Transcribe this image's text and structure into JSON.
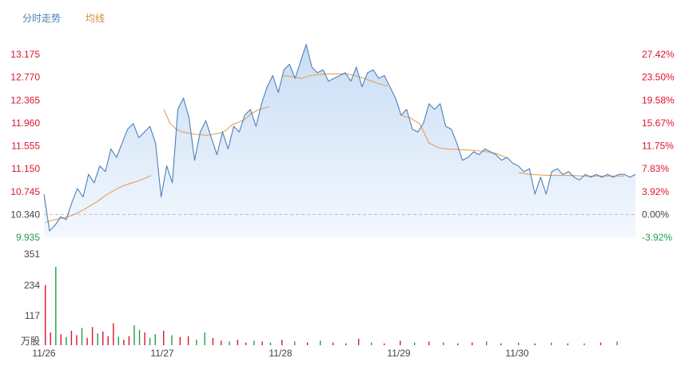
{
  "legend": {
    "price_label": "分时走势",
    "avg_label": "均线"
  },
  "colors": {
    "price": "#4f80b7",
    "avg": "#e3a05e",
    "up": "#e0142e",
    "down": "#1ea04a",
    "grid": "#b9bec6",
    "area_top": "#c9ddf5",
    "area_bottom": "#f3f8fe",
    "legend_price": "#4f80b7",
    "legend_avg": "#d18b3c"
  },
  "chart_data": {
    "type": "line",
    "title": "",
    "x_labels": [
      "11/26",
      "11/27",
      "11/28",
      "11/29",
      "11/30"
    ],
    "y_axis_left": [
      "13.175",
      "12.770",
      "12.365",
      "11.960",
      "11.555",
      "11.150",
      "10.745",
      "10.340",
      "9.935"
    ],
    "y_axis_right": [
      "27.42%",
      "23.50%",
      "19.58%",
      "15.67%",
      "11.75%",
      "7.83%",
      "3.92%",
      "0.00%",
      "-3.92%"
    ],
    "ylim": [
      9.935,
      13.175
    ],
    "baseline": 10.34,
    "volume_axis": [
      "351",
      "234",
      "117"
    ],
    "volume_unit": "万股",
    "volume_max": 351,
    "price_series": {
      "name": "分时走势",
      "values": [
        10.7,
        10.05,
        10.15,
        10.3,
        10.25,
        10.55,
        10.8,
        10.65,
        11.05,
        10.9,
        11.2,
        11.1,
        11.5,
        11.35,
        11.6,
        11.85,
        11.95,
        11.7,
        11.8,
        11.9,
        11.6,
        10.65,
        11.2,
        10.9,
        12.2,
        12.4,
        12.05,
        11.3,
        11.8,
        12.0,
        11.7,
        11.4,
        11.8,
        11.5,
        11.9,
        11.8,
        12.1,
        12.2,
        11.9,
        12.3,
        12.6,
        12.8,
        12.5,
        12.9,
        13.0,
        12.75,
        13.05,
        13.35,
        12.95,
        12.85,
        12.9,
        12.7,
        12.75,
        12.8,
        12.85,
        12.7,
        12.95,
        12.6,
        12.85,
        12.9,
        12.75,
        12.8,
        12.6,
        12.4,
        12.1,
        12.2,
        11.85,
        11.8,
        11.95,
        12.3,
        12.2,
        12.3,
        11.9,
        11.85,
        11.6,
        11.3,
        11.35,
        11.45,
        11.4,
        11.5,
        11.45,
        11.4,
        11.3,
        11.35,
        11.25,
        11.2,
        11.1,
        11.15,
        10.7,
        11.0,
        10.7,
        11.1,
        11.15,
        11.05,
        11.1,
        11.0,
        10.95,
        11.05,
        11.0,
        11.05,
        11.0,
        11.05,
        11.0,
        11.05,
        11.05,
        11.0,
        11.05
      ]
    },
    "avg_series": {
      "name": "均线",
      "segments": [
        {
          "day": 0,
          "values": [
            10.2,
            10.24,
            10.27,
            10.3,
            10.35,
            10.42,
            10.5,
            10.58,
            10.68,
            10.76,
            10.83,
            10.88,
            10.92,
            10.97,
            11.03
          ]
        },
        {
          "day": 1,
          "values": [
            12.2,
            11.95,
            11.85,
            11.8,
            11.78,
            11.76,
            11.75,
            11.74,
            11.76,
            11.78,
            11.83,
            11.93,
            11.97,
            12.02,
            12.12,
            12.18,
            12.22,
            12.25
          ]
        },
        {
          "day": 2,
          "values": [
            12.8,
            12.78,
            12.75,
            12.8,
            12.82,
            12.83,
            12.83,
            12.82,
            12.78,
            12.72,
            12.66,
            12.61
          ]
        },
        {
          "day": 3,
          "values": [
            12.1,
            12.05,
            11.95,
            11.6,
            11.52,
            11.5,
            11.49,
            11.48,
            11.47,
            11.45,
            11.42,
            11.35
          ]
        },
        {
          "day": 4,
          "values": [
            11.08,
            11.05,
            11.04,
            11.03,
            11.03,
            11.03,
            11.02,
            11.02,
            11.02,
            11.02,
            11.02
          ]
        }
      ]
    },
    "volume": [
      {
        "day": 0,
        "bars": [
          [
            0.66,
            "up"
          ],
          [
            0.14,
            "up"
          ],
          [
            0.86,
            "down"
          ],
          [
            0.12,
            "up"
          ],
          [
            0.09,
            "down"
          ],
          [
            0.16,
            "up"
          ],
          [
            0.11,
            "up"
          ],
          [
            0.19,
            "down"
          ],
          [
            0.08,
            "up"
          ],
          [
            0.2,
            "up"
          ],
          [
            0.13,
            "down"
          ],
          [
            0.15,
            "up"
          ],
          [
            0.1,
            "up"
          ],
          [
            0.24,
            "up"
          ],
          [
            0.09,
            "down"
          ],
          [
            0.06,
            "up"
          ],
          [
            0.1,
            "up"
          ],
          [
            0.22,
            "down"
          ],
          [
            0.17,
            "down"
          ],
          [
            0.14,
            "up"
          ],
          [
            0.08,
            "down"
          ],
          [
            0.12,
            "down"
          ]
        ]
      },
      {
        "day": 1,
        "bars": [
          [
            0.16,
            "up"
          ],
          [
            0.11,
            "down"
          ],
          [
            0.09,
            "up"
          ],
          [
            0.1,
            "up"
          ],
          [
            0.06,
            "down"
          ],
          [
            0.14,
            "down"
          ],
          [
            0.08,
            "up"
          ],
          [
            0.05,
            "up"
          ],
          [
            0.04,
            "down"
          ],
          [
            0.06,
            "up"
          ],
          [
            0.03,
            "up"
          ],
          [
            0.05,
            "down"
          ],
          [
            0.04,
            "up"
          ],
          [
            0.03,
            "down"
          ]
        ]
      },
      {
        "day": 2,
        "bars": [
          [
            0.06,
            "up"
          ],
          [
            0.04,
            "down"
          ],
          [
            0.03,
            "up"
          ],
          [
            0.05,
            "down"
          ],
          [
            0.03,
            "up"
          ],
          [
            0.02,
            "up"
          ],
          [
            0.07,
            "up"
          ],
          [
            0.03,
            "down"
          ],
          [
            0.02,
            "up"
          ]
        ]
      },
      {
        "day": 3,
        "bars": [
          [
            0.05,
            "up"
          ],
          [
            0.03,
            "down"
          ],
          [
            0.04,
            "up"
          ],
          [
            0.03,
            "down"
          ],
          [
            0.02,
            "up"
          ],
          [
            0.03,
            "up"
          ],
          [
            0.04,
            "down"
          ],
          [
            0.02,
            "up"
          ]
        ]
      },
      {
        "day": 4,
        "bars": [
          [
            0.03,
            "down"
          ],
          [
            0.02,
            "up"
          ],
          [
            0.03,
            "down"
          ],
          [
            0.02,
            "up"
          ],
          [
            0.02,
            "down"
          ],
          [
            0.03,
            "up"
          ],
          [
            0.04,
            "down"
          ]
        ]
      }
    ]
  }
}
